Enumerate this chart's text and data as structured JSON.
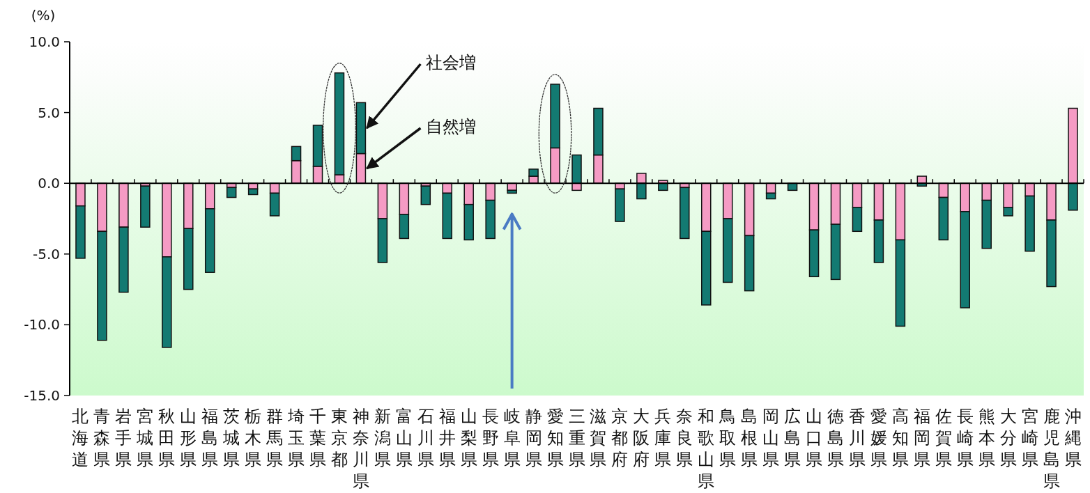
{
  "chart_data": {
    "type": "bar",
    "stacked": true,
    "ylabel": "(%)",
    "categories": [
      "北海道",
      "青森県",
      "岩手県",
      "宮城県",
      "秋田県",
      "山形県",
      "福島県",
      "茨城県",
      "栃木県",
      "群馬県",
      "埼玉県",
      "千葉県",
      "東京都",
      "神奈川県",
      "新潟県",
      "富山県",
      "石川県",
      "福井県",
      "山梨県",
      "長野県",
      "岐阜県",
      "静岡県",
      "愛知県",
      "三重県",
      "滋賀県",
      "京都府",
      "大阪府",
      "兵庫県",
      "奈良県",
      "和歌山県",
      "鳥取県",
      "島根県",
      "岡山県",
      "広島県",
      "山口県",
      "徳島県",
      "香川県",
      "愛媛県",
      "高知県",
      "福岡県",
      "佐賀県",
      "長崎県",
      "熊本県",
      "大分県",
      "宮崎県",
      "鹿児島県",
      "沖縄県"
    ],
    "series": [
      {
        "name": "自然増",
        "color": "#f59bc4",
        "values": [
          -1.6,
          -3.4,
          -3.1,
          -0.2,
          -5.2,
          -3.2,
          -1.8,
          -0.3,
          -0.4,
          -0.7,
          1.6,
          1.2,
          0.6,
          2.1,
          -2.5,
          -2.2,
          -0.2,
          -0.7,
          -1.5,
          -1.2,
          -0.5,
          0.5,
          2.5,
          -0.5,
          2.0,
          -0.4,
          0.7,
          0.2,
          -0.3,
          -3.4,
          -2.5,
          -3.7,
          -0.7,
          0.0,
          -3.3,
          -2.9,
          -1.7,
          -2.6,
          -4.0,
          0.5,
          -1.0,
          -2.0,
          -1.2,
          -1.7,
          -0.9,
          -2.6,
          5.3
        ]
      },
      {
        "name": "社会増",
        "color": "#137a72",
        "values": [
          -3.7,
          -7.7,
          -4.6,
          -2.9,
          -6.4,
          -4.3,
          -4.5,
          -0.7,
          -0.4,
          -1.6,
          1.0,
          2.9,
          7.2,
          3.6,
          -3.1,
          -1.7,
          -1.3,
          -3.2,
          -2.5,
          -2.7,
          -0.2,
          0.5,
          4.5,
          2.0,
          3.3,
          -2.3,
          -1.1,
          -0.5,
          -3.6,
          -5.2,
          -4.5,
          -3.9,
          -0.4,
          -0.5,
          -3.3,
          -3.9,
          -1.7,
          -3.0,
          -6.1,
          -0.2,
          -3.0,
          -6.8,
          -3.4,
          -0.6,
          -3.9,
          -4.7,
          -1.9
        ]
      }
    ],
    "ylim": [
      -15,
      10
    ],
    "yticks": [
      {
        "value": 10,
        "label": "10.0"
      },
      {
        "value": 5,
        "label": "5.0"
      },
      {
        "value": 0,
        "label": "0.0"
      },
      {
        "value": -5,
        "label": "-5.0"
      },
      {
        "value": -10,
        "label": "-10.0"
      },
      {
        "value": -15,
        "label": "-15.0"
      }
    ]
  }
}
